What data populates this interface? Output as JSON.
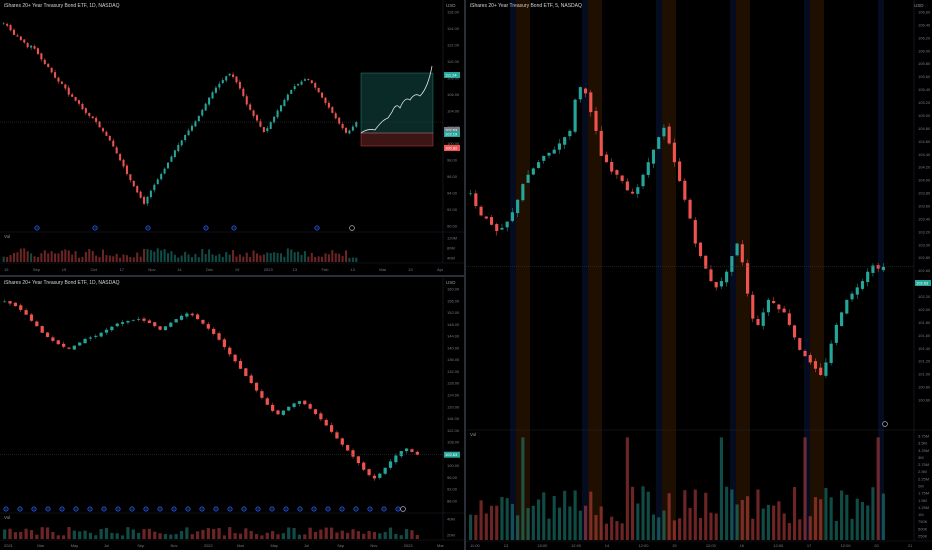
{
  "panes": {
    "top_left": {
      "title": "iShares 20+ Year Treasury Bond ETF, 1D, NASDAQ",
      "currency": "USD",
      "volume_label": "Vol",
      "price_ticks": [
        "116.00",
        "114.00",
        "112.00",
        "110.00",
        "108.00",
        "106.00",
        "104.00",
        "102.00",
        "100.00",
        "98.00",
        "96.00",
        "94.00",
        "92.00",
        "90.00"
      ],
      "volume_ticks": [
        "120M",
        "80M",
        "40M"
      ],
      "time_ticks": [
        "15",
        "Sep",
        "19",
        "Oct",
        "17",
        "Nov",
        "14",
        "Dec",
        "19",
        "2023",
        "13",
        "Feb",
        "13",
        "Mar",
        "13",
        "Apr"
      ],
      "tags": [
        {
          "text": "111.24",
          "color": "#26a69a"
        },
        {
          "text": "102.63",
          "color": "#787b86"
        },
        {
          "text": "102.19",
          "color": "#26a69a"
        },
        {
          "text": "100.82",
          "color": "#ef5350"
        }
      ]
    },
    "bottom_left": {
      "title": "iShares 20+ Year Treasury Bond ETF, 1D, NASDAQ",
      "currency": "USD",
      "volume_label": "Vol",
      "price_ticks": [
        "160.00",
        "156.00",
        "152.00",
        "148.00",
        "144.00",
        "140.00",
        "136.00",
        "132.00",
        "128.00",
        "124.00",
        "120.00",
        "116.00",
        "112.00",
        "108.00",
        "104.00",
        "100.00",
        "96.00",
        "92.00",
        "88.00"
      ],
      "volume_ticks": [
        "40M",
        "20M"
      ],
      "time_ticks": [
        "2021",
        "Mar",
        "May",
        "Jul",
        "Sep",
        "Nov",
        "2022",
        "Mar",
        "May",
        "Jul",
        "Sep",
        "Nov",
        "2023",
        "Mar"
      ],
      "tags": [
        {
          "text": "102.63",
          "color": "#26a69a"
        }
      ]
    },
    "right": {
      "title": "iShares 20+ Year Treasury Bond ETF, 5, NASDAQ",
      "currency": "USD",
      "volume_label": "Vol",
      "price_ticks": [
        "106.60",
        "106.40",
        "106.20",
        "106.00",
        "105.80",
        "105.60",
        "105.40",
        "105.20",
        "105.00",
        "104.80",
        "104.60",
        "104.40",
        "104.20",
        "104.00",
        "103.80",
        "103.60",
        "103.40",
        "103.20",
        "103.00",
        "102.80",
        "102.60",
        "102.40",
        "102.20",
        "102.00",
        "101.80",
        "101.60",
        "101.40",
        "101.20",
        "101.00",
        "100.80",
        "100.60"
      ],
      "volume_ticks": [
        "3.75M",
        "3.5M",
        "3.25M",
        "3M",
        "2.75M",
        "2.5M",
        "2.25M",
        "2M",
        "1.75M",
        "1.5M",
        "1.25M",
        "1M",
        "750K",
        "500K",
        "250K"
      ],
      "time_ticks": [
        "11:00",
        "13",
        "15:00",
        "12:00",
        "14",
        "12:00",
        "15",
        "12:00",
        "16",
        "12:00",
        "17",
        "12:00",
        "20",
        "21"
      ],
      "tags": [
        {
          "text": "102.63",
          "color": "#26a69a"
        }
      ]
    }
  },
  "chart_data": [
    {
      "type": "candlestick",
      "pane": "top_left",
      "title": "iShares 20+ Year Treasury Bond ETF, 1D, NASDAQ",
      "ylim": [
        89,
        117
      ],
      "close": [
        115.5,
        115.2,
        114.6,
        114.0,
        113.8,
        113.3,
        113.0,
        112.4,
        112.6,
        112.2,
        111.5,
        110.8,
        110.2,
        109.8,
        109.1,
        108.4,
        107.9,
        107.6,
        107.0,
        106.2,
        105.9,
        105.4,
        105.0,
        104.3,
        103.8,
        103.4,
        103.1,
        102.6,
        101.9,
        101.4,
        100.8,
        100.2,
        99.4,
        98.5,
        97.6,
        96.8,
        95.8,
        95.0,
        94.2,
        93.4,
        92.7,
        91.9,
        92.8,
        93.6,
        94.4,
        95.1,
        95.8,
        96.5,
        97.3,
        98.1,
        98.9,
        99.6,
        100.2,
        100.9,
        101.5,
        102.1,
        102.7,
        103.4,
        104.2,
        105.0,
        105.8,
        106.5,
        107.1,
        107.6,
        108.1,
        108.6,
        108.9,
        108.5,
        107.8,
        107.0,
        106.0,
        104.9,
        104.2,
        103.4,
        102.8,
        102.0,
        101.3,
        101.8,
        102.6,
        103.3,
        104.1,
        104.8,
        105.5,
        106.2,
        106.8,
        107.3,
        107.6,
        107.9,
        108.2,
        108.1,
        107.7,
        107.1,
        106.5,
        105.8,
        105.1,
        104.5,
        103.8,
        103.1,
        102.4,
        101.8,
        101.2,
        101.5,
        102.0,
        102.6
      ],
      "volume_relative": true
    },
    {
      "type": "candlestick",
      "pane": "bottom_left",
      "title": "iShares 20+ Year Treasury Bond ETF, 1D, NASDAQ",
      "ylim": [
        86,
        162
      ],
      "close": [
        157.5,
        156.8,
        155.9,
        154.5,
        152.8,
        150.6,
        148.7,
        146.3,
        144.8,
        143.4,
        142.2,
        141.3,
        140.6,
        141.7,
        142.8,
        144.1,
        144.6,
        145.2,
        146.3,
        147.4,
        148.5,
        149.6,
        150.1,
        150.5,
        150.9,
        151.2,
        150.6,
        149.8,
        148.7,
        147.4,
        148.6,
        149.9,
        151.2,
        152.4,
        153.2,
        152.6,
        151.2,
        149.6,
        147.8,
        145.9,
        143.8,
        141.2,
        138.6,
        136.1,
        133.4,
        130.8,
        128.3,
        125.6,
        123.0,
        120.5,
        118.3,
        117.1,
        118.4,
        119.8,
        121.0,
        121.8,
        120.7,
        119.1,
        117.2,
        115.3,
        113.1,
        110.8,
        108.4,
        106.2,
        104.1,
        101.9,
        99.6,
        97.2,
        95.3,
        94.1,
        95.8,
        97.9,
        100.2,
        102.3,
        103.9,
        104.8,
        103.6,
        102.6
      ],
      "volume_relative": true
    },
    {
      "type": "candlestick",
      "pane": "right",
      "title": "iShares 20+ Year Treasury Bond ETF, 5, NASDAQ",
      "ylim": [
        100.5,
        106.7
      ],
      "close": [
        103.8,
        103.6,
        103.45,
        103.4,
        103.3,
        103.2,
        103.25,
        103.35,
        103.5,
        103.7,
        103.95,
        104.1,
        104.2,
        104.3,
        104.4,
        104.45,
        104.5,
        104.6,
        104.7,
        104.8,
        105.3,
        105.5,
        105.4,
        105.1,
        104.8,
        104.4,
        104.3,
        104.15,
        104.1,
        104.0,
        103.85,
        103.8,
        103.9,
        104.1,
        104.3,
        104.5,
        104.7,
        104.85,
        104.6,
        104.3,
        104.0,
        103.7,
        103.4,
        103.0,
        102.8,
        102.6,
        102.4,
        102.3,
        102.4,
        102.55,
        102.8,
        103.0,
        102.7,
        102.2,
        101.8,
        101.7,
        101.9,
        102.1,
        102.05,
        101.95,
        101.9,
        101.7,
        101.5,
        101.3,
        101.2,
        101.1,
        101.0,
        100.9,
        101.1,
        101.4,
        101.7,
        101.9,
        102.1,
        102.2,
        102.3,
        102.4,
        102.55,
        102.65,
        102.6,
        102.63
      ],
      "volume_relative": true
    }
  ]
}
